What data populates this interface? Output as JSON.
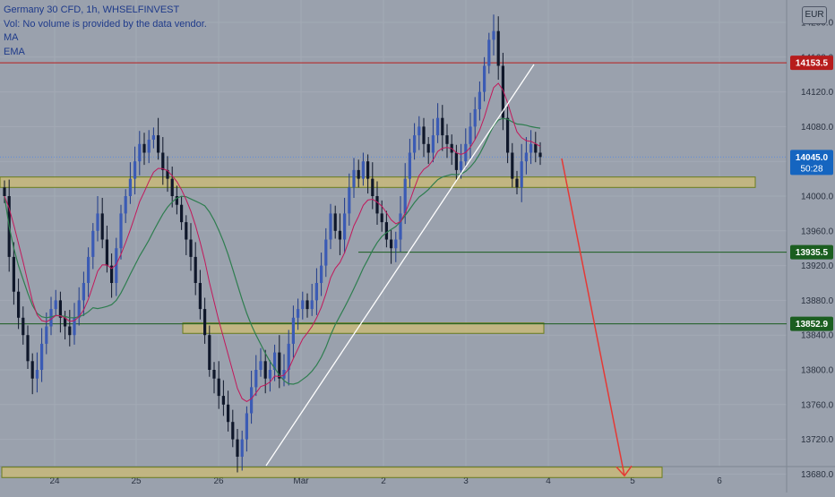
{
  "legend": {
    "title": "Germany 30 CFD, 1h, WHSELFINVEST",
    "volume_note": "Vol: No volume is provided by the data vendor.",
    "ma_label": "MA",
    "ema_label": "EMA"
  },
  "currency": "EUR",
  "price_axis": {
    "ticks": [
      "14200.0",
      "14160.0",
      "14120.0",
      "14080.0",
      "14040.0",
      "14000.0",
      "13960.0",
      "13920.0",
      "13880.0",
      "13840.0",
      "13800.0",
      "13760.0",
      "13720.0",
      "13680.0"
    ]
  },
  "time_axis": {
    "labels": [
      "24",
      "25",
      "26",
      "Mar",
      "2",
      "3",
      "4",
      "5",
      "6"
    ]
  },
  "chart_data": {
    "type": "candlestick",
    "x_labels": [
      "24",
      "25",
      "26",
      "Mar",
      "2",
      "3",
      "4",
      "5",
      "6"
    ],
    "ylim": [
      13670,
      14222
    ],
    "price_tags": [
      {
        "value": 14153.5,
        "label": "14153.5",
        "color": "#b71c1c"
      },
      {
        "value": 14045.0,
        "label": "14045.0",
        "sublabel": "50:28",
        "color": "#1565c0"
      },
      {
        "value": 13935.5,
        "label": "13935.5",
        "color": "#1b5e20"
      },
      {
        "value": 13852.9,
        "label": "13852.9",
        "color": "#1b5e20"
      }
    ],
    "zones": [
      {
        "y_top": 14022,
        "y_bottom": 14010
      },
      {
        "y_top": 13854,
        "y_bottom": 13842
      },
      {
        "y_top": 13688,
        "y_bottom": 13676
      }
    ],
    "projection": {
      "from": 14029,
      "to": 13678
    },
    "closes": [
      14000,
      13930,
      13890,
      13860,
      13840,
      13810,
      13790,
      13800,
      13830,
      13850,
      13870,
      13880,
      13860,
      13850,
      13840,
      13860,
      13880,
      13900,
      13930,
      13960,
      13980,
      13950,
      13920,
      13900,
      13940,
      13980,
      14000,
      14020,
      14040,
      14060,
      14050,
      14065,
      14070,
      14050,
      14030,
      14020,
      14000,
      13990,
      13970,
      13950,
      13930,
      13900,
      13870,
      13840,
      13800,
      13790,
      13770,
      13760,
      13740,
      13720,
      13700,
      13720,
      13750,
      13780,
      13800,
      13810,
      13790,
      13800,
      13820,
      13790,
      13800,
      13830,
      13860,
      13870,
      13880,
      13870,
      13880,
      13900,
      13920,
      13950,
      13980,
      13960,
      13950,
      13980,
      14010,
      14030,
      14020,
      14040,
      14020,
      14000,
      13980,
      13970,
      13950,
      13940,
      13950,
      13980,
      14020,
      14050,
      14070,
      14080,
      14060,
      14050,
      14070,
      14090,
      14070,
      14060,
      14050,
      14030,
      14040,
      14060,
      14080,
      14100,
      14120,
      14150,
      14180,
      14190,
      14150,
      14090,
      14050,
      14020,
      14010,
      14040,
      14050,
      14060,
      14050,
      14045
    ],
    "ma": {
      "period": 20
    },
    "ema": {
      "period": 9
    }
  }
}
